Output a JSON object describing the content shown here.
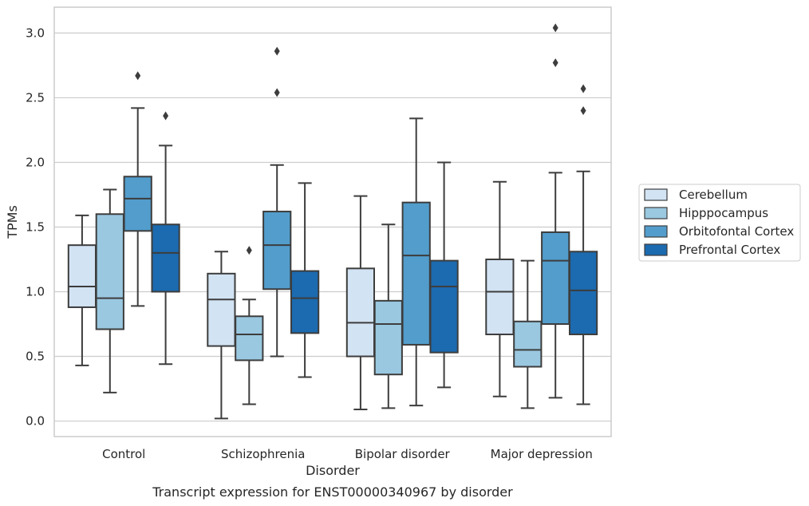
{
  "caption": "Transcript expression for ENST00000340967 by disorder",
  "chart_data": {
    "type": "box",
    "title": "",
    "xlabel": "Disorder",
    "ylabel": "TPMs",
    "ylim": [
      -0.12,
      3.2
    ],
    "yticks": [
      "0.0",
      "0.5",
      "1.0",
      "1.5",
      "2.0",
      "2.5",
      "3.0"
    ],
    "grid": true,
    "legend_position": "right",
    "categories": [
      "Control",
      "Schizophrenia",
      "Bipolar disorder",
      "Major depression"
    ],
    "series": [
      {
        "name": "Cerebellum",
        "color": "#d2e3f3",
        "boxes": [
          {
            "whislo": 0.43,
            "q1": 0.88,
            "med": 1.04,
            "q3": 1.36,
            "whishi": 1.59,
            "fliers": []
          },
          {
            "whislo": 0.02,
            "q1": 0.58,
            "med": 0.94,
            "q3": 1.14,
            "whishi": 1.31,
            "fliers": []
          },
          {
            "whislo": 0.09,
            "q1": 0.5,
            "med": 0.76,
            "q3": 1.18,
            "whishi": 1.74,
            "fliers": []
          },
          {
            "whislo": 0.19,
            "q1": 0.67,
            "med": 1.0,
            "q3": 1.25,
            "whishi": 1.85,
            "fliers": []
          }
        ]
      },
      {
        "name": "Hipppocampus",
        "color": "#9ac8e0",
        "boxes": [
          {
            "whislo": 0.22,
            "q1": 0.71,
            "med": 0.95,
            "q3": 1.6,
            "whishi": 1.79,
            "fliers": []
          },
          {
            "whislo": 0.13,
            "q1": 0.47,
            "med": 0.67,
            "q3": 0.81,
            "whishi": 0.94,
            "fliers": [
              1.32
            ]
          },
          {
            "whislo": 0.1,
            "q1": 0.36,
            "med": 0.75,
            "q3": 0.93,
            "whishi": 1.52,
            "fliers": []
          },
          {
            "whislo": 0.1,
            "q1": 0.42,
            "med": 0.55,
            "q3": 0.77,
            "whishi": 1.24,
            "fliers": []
          }
        ]
      },
      {
        "name": "Orbitofontal Cortex",
        "color": "#529dcc",
        "boxes": [
          {
            "whislo": 0.89,
            "q1": 1.47,
            "med": 1.72,
            "q3": 1.89,
            "whishi": 2.42,
            "fliers": [
              2.67
            ]
          },
          {
            "whislo": 0.5,
            "q1": 1.02,
            "med": 1.36,
            "q3": 1.62,
            "whishi": 1.98,
            "fliers": [
              2.54,
              2.86
            ]
          },
          {
            "whislo": 0.12,
            "q1": 0.59,
            "med": 1.28,
            "q3": 1.69,
            "whishi": 2.34,
            "fliers": []
          },
          {
            "whislo": 0.18,
            "q1": 0.75,
            "med": 1.24,
            "q3": 1.46,
            "whishi": 1.92,
            "fliers": [
              2.77,
              3.04
            ]
          }
        ]
      },
      {
        "name": "Prefrontal Cortex",
        "color": "#1c6aaf",
        "boxes": [
          {
            "whislo": 0.44,
            "q1": 1.0,
            "med": 1.3,
            "q3": 1.52,
            "whishi": 2.13,
            "fliers": [
              2.36
            ]
          },
          {
            "whislo": 0.34,
            "q1": 0.68,
            "med": 0.95,
            "q3": 1.16,
            "whishi": 1.84,
            "fliers": []
          },
          {
            "whislo": 0.26,
            "q1": 0.53,
            "med": 1.04,
            "q3": 1.24,
            "whishi": 2.0,
            "fliers": []
          },
          {
            "whislo": 0.13,
            "q1": 0.67,
            "med": 1.01,
            "q3": 1.31,
            "whishi": 1.93,
            "fliers": [
              2.4,
              2.57
            ]
          }
        ]
      }
    ]
  }
}
